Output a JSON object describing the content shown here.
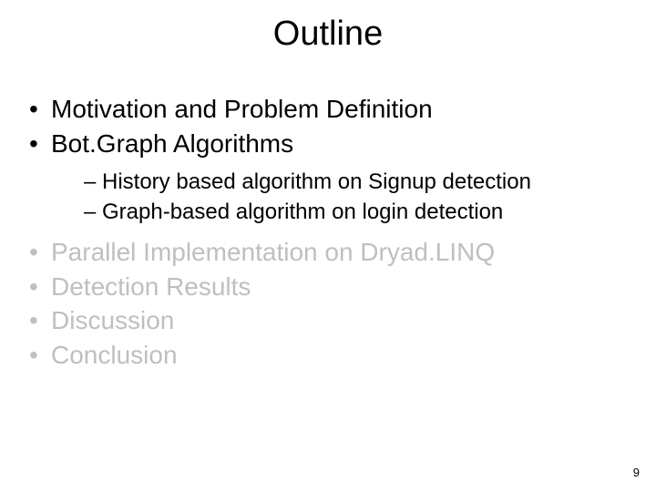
{
  "slide": {
    "title": "Outline",
    "page_number": "9",
    "bullets": [
      {
        "text": "Motivation and Problem Definition",
        "emphasis": "dark"
      },
      {
        "text": "Bot.Graph Algorithms",
        "emphasis": "dark"
      },
      {
        "text": "Parallel Implementation on Dryad.LINQ",
        "emphasis": "dim"
      },
      {
        "text": "Detection Results",
        "emphasis": "dim"
      },
      {
        "text": "Discussion",
        "emphasis": "dim"
      },
      {
        "text": "Conclusion",
        "emphasis": "dim"
      }
    ],
    "sub_bullets": [
      {
        "text": "History based algorithm on Signup detection"
      },
      {
        "text": "Graph-based algorithm on login detection"
      }
    ],
    "colors": {
      "background": "#ffffff",
      "text_dark": "#000000",
      "text_dim": "#bfbfbf"
    },
    "fonts": {
      "title_size_pt": 38,
      "bullet_size_pt": 28,
      "sub_bullet_size_pt": 24,
      "page_num_size_pt": 13
    }
  }
}
